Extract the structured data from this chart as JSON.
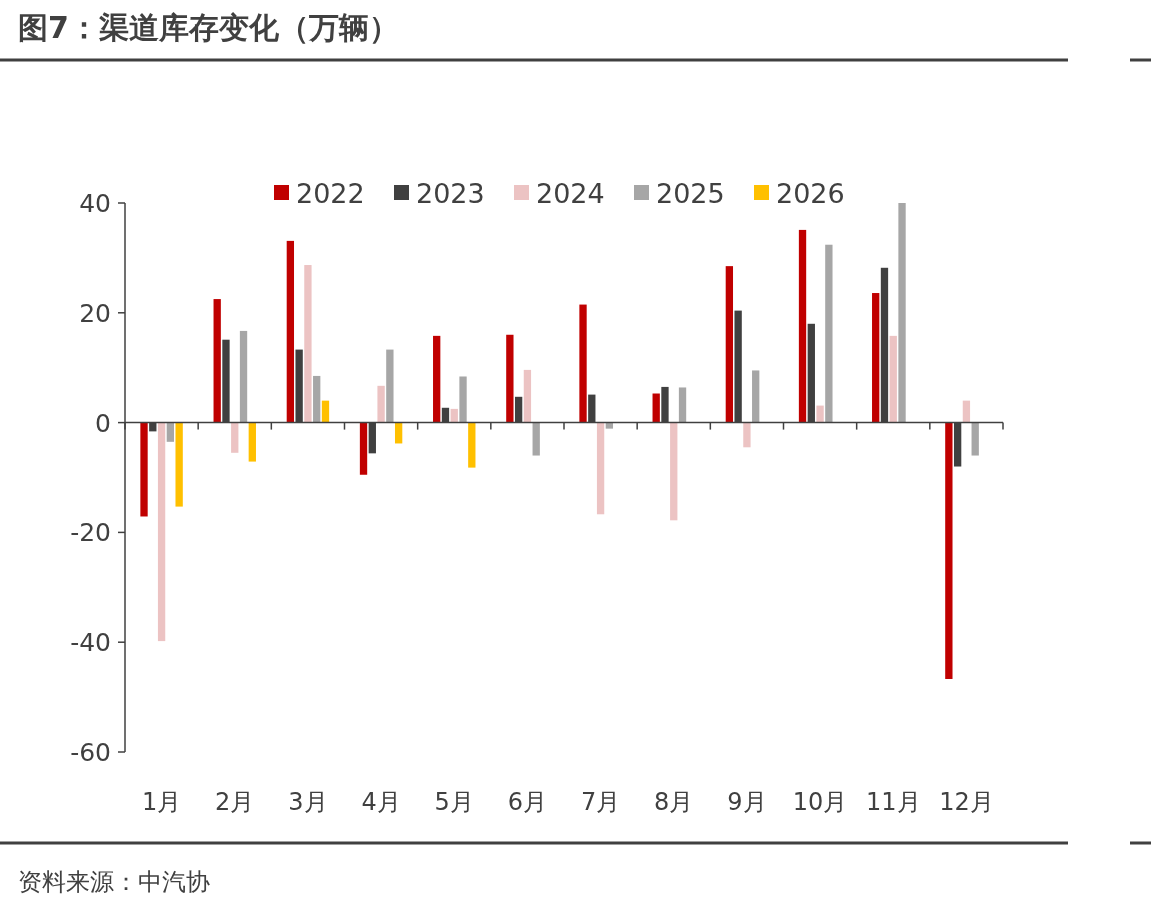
{
  "chart_data": {
    "type": "bar",
    "title": "图7：渠道库存变化（万辆）",
    "categories": [
      "1月",
      "2月",
      "3月",
      "4月",
      "5月",
      "6月",
      "7月",
      "8月",
      "9月",
      "10月",
      "11月",
      "12月"
    ],
    "series": [
      {
        "name": "2022",
        "color": "#c00000",
        "values": [
          -17.1,
          22.5,
          33.1,
          -9.5,
          15.8,
          16.0,
          21.5,
          5.3,
          28.5,
          35.1,
          23.6,
          -46.7
        ]
      },
      {
        "name": "2023",
        "color": "#404040",
        "values": [
          -1.6,
          15.1,
          13.3,
          -5.6,
          2.7,
          4.7,
          5.1,
          6.5,
          20.4,
          18.0,
          28.2,
          -8.0
        ]
      },
      {
        "name": "2024",
        "color": "#ecc3c3",
        "values": [
          -39.8,
          -5.5,
          28.7,
          6.7,
          2.5,
          9.6,
          -16.7,
          -17.8,
          -4.5,
          3.1,
          15.8,
          4.0
        ]
      },
      {
        "name": "2025",
        "color": "#a6a6a6",
        "values": [
          -3.5,
          16.7,
          8.5,
          13.3,
          8.4,
          -6.0,
          -1.1,
          6.4,
          9.5,
          32.4,
          40.0,
          -6.0
        ]
      },
      {
        "name": "2026",
        "color": "#ffc000",
        "values": [
          -15.3,
          -7.1,
          4.0,
          -3.8,
          -8.2,
          null,
          null,
          null,
          null,
          null,
          null,
          null
        ]
      }
    ],
    "ylim": [
      -60,
      40
    ],
    "yticks": [
      -60,
      -40,
      -20,
      0,
      20,
      40
    ],
    "legend": "top",
    "annotations": [
      "资料来源：中汽协"
    ]
  }
}
